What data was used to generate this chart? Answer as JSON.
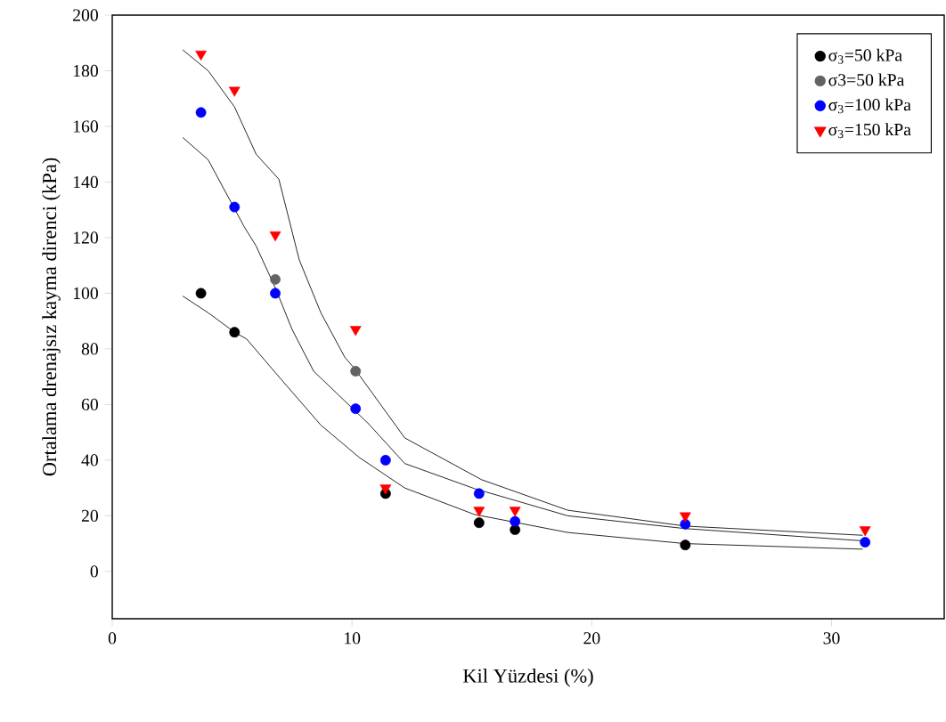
{
  "chart_data": {
    "type": "scatter",
    "xlabel": "Kil Yüzdesi (%)",
    "ylabel": "Ortalama drenajsız kayma direnci (kPa)",
    "xlim": [
      0,
      34.7
    ],
    "ylim": [
      -17,
      200
    ],
    "xticks": [
      0,
      10,
      20,
      30
    ],
    "yticks": [
      0,
      20,
      40,
      60,
      80,
      100,
      120,
      140,
      160,
      180,
      200
    ],
    "legend": "top right",
    "grid": false,
    "series": [
      {
        "name": "σ$_{3}$=50 kPa",
        "color": "#000000",
        "marker": "circle",
        "x": [
          3.7,
          5.1,
          11.4,
          15.3,
          16.8,
          23.9
        ],
        "values": [
          100,
          86,
          28,
          17.5,
          15,
          9.5
        ]
      },
      {
        "name": "σ3=50 kPa",
        "color": "#636363",
        "marker": "circle",
        "x": [
          6.8,
          10.15
        ],
        "values": [
          105,
          72
        ]
      },
      {
        "name": "σ$_{3}$=100 kPa",
        "color": "#0000ff",
        "marker": "circle",
        "x": [
          3.7,
          5.1,
          6.8,
          10.15,
          11.4,
          15.3,
          16.8,
          23.9,
          31.4
        ],
        "values": [
          165,
          131,
          100,
          58.5,
          40,
          28,
          18,
          17,
          10.5
        ]
      },
      {
        "name": "σ$_{3}$=150 kPa",
        "color": "#ff0000",
        "marker": "triangle",
        "x": [
          3.7,
          5.1,
          6.8,
          10.15,
          11.4,
          15.3,
          16.8,
          23.9,
          31.4
        ],
        "values": [
          186,
          173,
          121,
          87,
          30,
          22,
          22,
          20,
          15
        ]
      },
      {
        "type": "line",
        "color": "#000000",
        "marker": "none",
        "x": [
          2.94,
          4.0,
          5.1,
          5.6,
          6.85,
          8.7,
          10.3,
          12.2,
          15.1,
          19.0,
          23.9,
          31.3
        ],
        "values": [
          99,
          93,
          86,
          83.6,
          71,
          52.6,
          41,
          30,
          20.5,
          14,
          10,
          8
        ]
      },
      {
        "type": "line",
        "color": "#000000",
        "marker": "none",
        "x": [
          2.94,
          4.0,
          5.5,
          6.0,
          6.8,
          7.5,
          8.4,
          10.7,
          12.2,
          15.1,
          19.0,
          23.9,
          31.3
        ],
        "values": [
          156,
          148,
          124,
          117,
          102,
          87,
          72,
          53,
          38.8,
          29.8,
          20,
          15.4,
          11
        ]
      },
      {
        "type": "line",
        "color": "#000000",
        "marker": "none",
        "x": [
          2.94,
          4.0,
          5.1,
          6.0,
          6.95,
          7.8,
          8.7,
          9.7,
          10.1,
          12.2,
          15.4,
          19.0,
          23.9,
          31.3
        ],
        "values": [
          187.5,
          180,
          167,
          150,
          141,
          112,
          93,
          77,
          73,
          48,
          33,
          22,
          16.3,
          13
        ]
      }
    ]
  }
}
